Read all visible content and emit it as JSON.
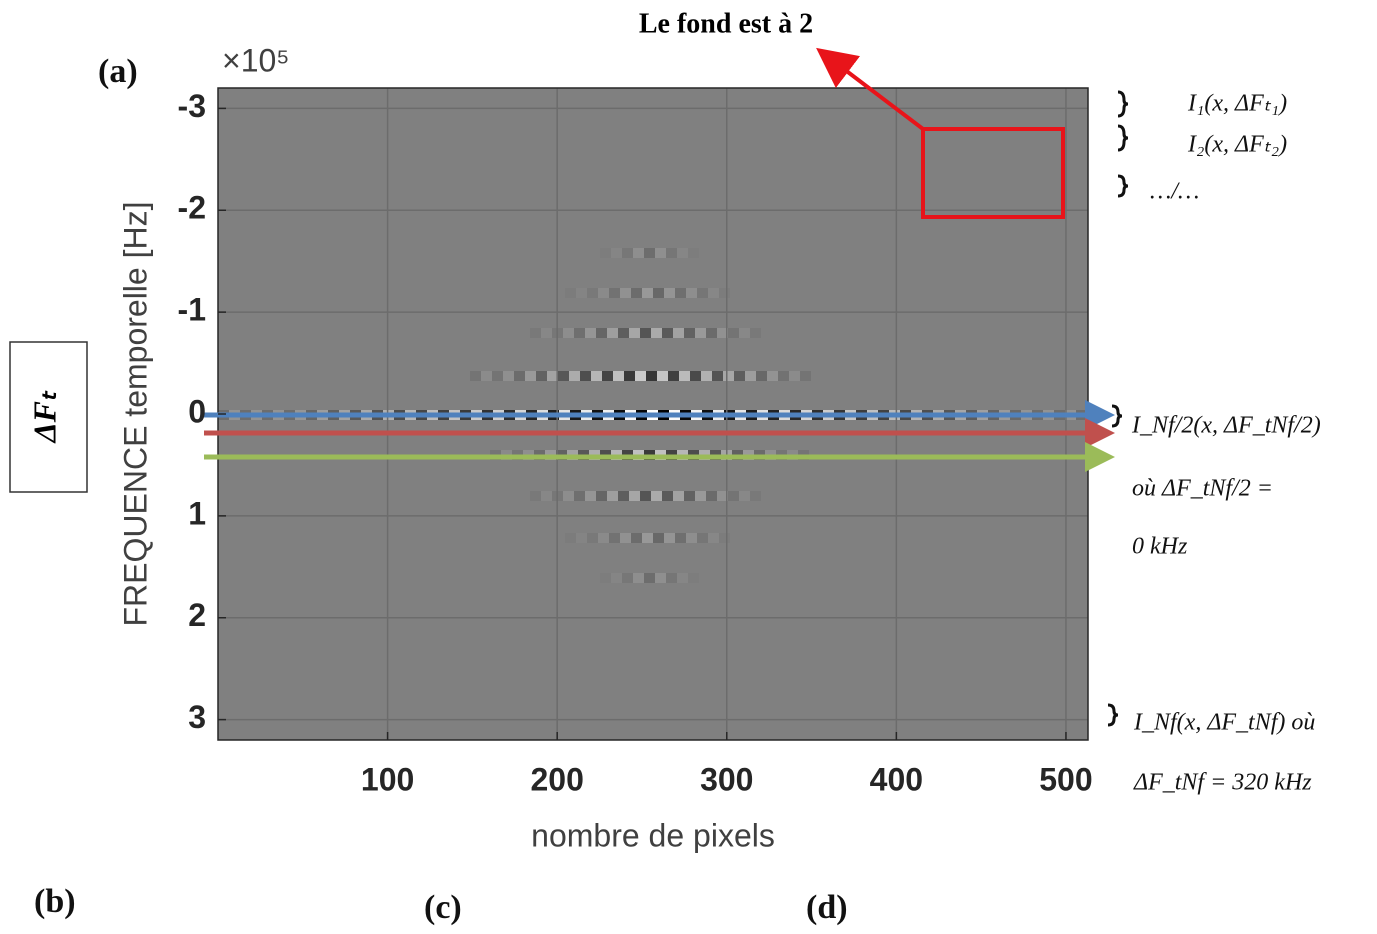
{
  "chart_data": {
    "type": "image",
    "xlabel": "nombre de pixels",
    "ylabel": "FREQUENCE temporelle [Hz]",
    "y_exponent_label": "×10⁵",
    "xlim": [
      0,
      513
    ],
    "xticks": [
      100,
      200,
      300,
      400,
      500
    ],
    "ylim": [
      -3.2,
      3.2
    ],
    "y_direction": "reverse",
    "yticks": [
      -3,
      -2,
      -1,
      0,
      1,
      2,
      3
    ],
    "grid": true,
    "background_color": "#808080",
    "annotations": {
      "background_note": "Le fond est à 2",
      "panel_a": "(a)",
      "panel_b": "(b)",
      "panel_c": "(c)",
      "panel_d": "(d)",
      "delta_label": "ΔFₜ",
      "row_1": "I₁(x, ΔFₜ₁)",
      "row_2": "I₂(x, ΔFₜ₂)",
      "row_etc": "…/…",
      "row_mid": "I_Nf/2(x, ΔF_tNf/2)",
      "row_mid_note": "où ΔF_tNf/2 =",
      "row_mid_value": "0 kHz",
      "row_last": "I_Nf(x, ΔF_tNf) où",
      "row_last_note": "ΔF_tNf = 320 kHz"
    }
  }
}
